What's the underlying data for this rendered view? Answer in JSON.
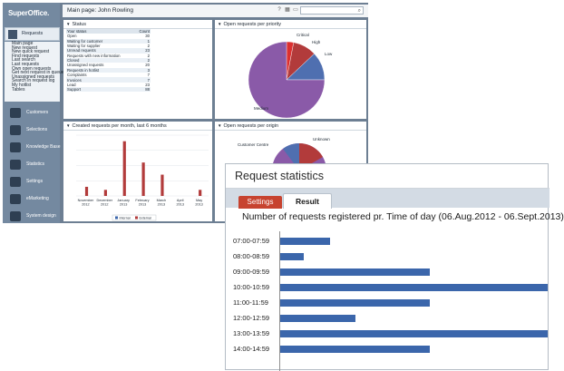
{
  "app": {
    "logo": "SuperOffice.",
    "active_nav": "Requests",
    "submenu": [
      "Main page",
      "New request",
      "New quick request",
      "Find requests",
      "Last search",
      "Last requests",
      "Own open requests",
      "Get next request in queue",
      "Unassigned requests",
      "Search in request log",
      "My hotlist",
      "Tables"
    ],
    "nav": [
      "Customers",
      "Selections",
      "Knowledge Base",
      "Statistics",
      "Settings",
      "eMarketing",
      "System design"
    ],
    "page_title": "Main page: John Rowling",
    "icons": [
      "help-icon",
      "layout-icon",
      "folder-icon"
    ]
  },
  "status_panel": {
    "title": "Status",
    "headers": [
      "Your status",
      "Count"
    ],
    "rows": [
      {
        "label": "Open",
        "count": "30"
      },
      {
        "label": "Waiting for customer",
        "count": "1"
      },
      {
        "label": "Waiting for supplier",
        "count": "2"
      },
      {
        "label": "Unread requests",
        "count": "23"
      },
      {
        "label": "Requests with new information",
        "count": "2"
      },
      {
        "label": "Closed",
        "count": "2"
      },
      {
        "label": "Unassigned requests",
        "count": "20"
      },
      {
        "label": "Requests in hotlist",
        "count": "3"
      },
      {
        "label": "Complaints",
        "count": "7"
      },
      {
        "label": "Invoices",
        "count": "7"
      },
      {
        "label": "Lead",
        "count": "23"
      },
      {
        "label": "Support",
        "count": "88"
      }
    ]
  },
  "pie_priority": {
    "title": "Open requests per priority",
    "labels": [
      "Critical",
      "High",
      "Low",
      "Medium"
    ]
  },
  "created_chart": {
    "title": "Created requests per month, last 6 months",
    "legend": [
      "Internal",
      "External"
    ],
    "colors": {
      "internal": "#3b66ab",
      "external": "#b23b3b"
    }
  },
  "pie_origin": {
    "title": "Open requests per origin",
    "labels": [
      "Customer Centre",
      "Unknown"
    ]
  },
  "overlay": {
    "window_title": "Request statistics",
    "tabs": [
      "Settings",
      "Result"
    ],
    "active_tab": "Result",
    "chart_title": "Number of requests registered pr. Time of day (06.Aug.2012 - 06.Sept.2013)"
  },
  "chart_data": [
    {
      "type": "bar",
      "title": "Created requests per month, last 6 months",
      "categories": [
        "November 2012",
        "December 2012",
        "January 2013",
        "February 2013",
        "March 2013",
        "April 2013",
        "May 2013"
      ],
      "series": [
        {
          "name": "Internal",
          "values": [
            0,
            0,
            0,
            0,
            0,
            0,
            0
          ]
        },
        {
          "name": "External",
          "values": [
            3,
            2,
            18,
            11,
            7,
            0,
            2
          ]
        }
      ],
      "ylim": [
        0,
        20
      ]
    },
    {
      "type": "pie",
      "title": "Open requests per priority",
      "categories": [
        "Critical",
        "High",
        "Low",
        "Medium"
      ],
      "values": [
        3,
        10,
        12,
        75
      ],
      "colors": [
        "#dc3030",
        "#b23b3b",
        "#4f6fb0",
        "#8a5aa8"
      ]
    },
    {
      "type": "bar",
      "title": "Number of requests registered pr. Time of day (06.Aug.2012 - 06.Sept.2013)",
      "orientation": "horizontal",
      "categories": [
        "07:00-07:59",
        "08:00-08:59",
        "09:00-09:59",
        "10:00-10:59",
        "11:00-11:59",
        "12:00-12:59",
        "13:00-13:59",
        "14:00-14:59"
      ],
      "values": [
        55,
        26,
        165,
        295,
        165,
        83,
        295,
        165
      ],
      "xlim": [
        0,
        300
      ]
    }
  ]
}
